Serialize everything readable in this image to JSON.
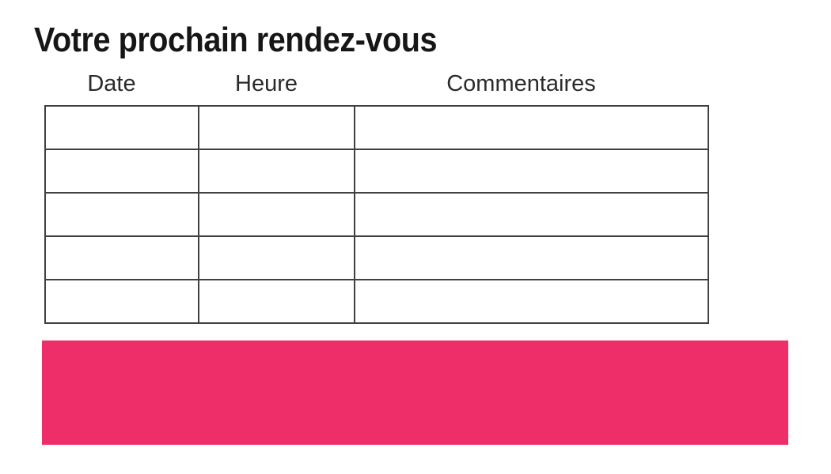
{
  "title": "Votre prochain rendez-vous",
  "table": {
    "headers": [
      "Date",
      "Heure",
      "Commentaires"
    ],
    "rows": [
      [
        "",
        "",
        ""
      ],
      [
        "",
        "",
        ""
      ],
      [
        "",
        "",
        ""
      ],
      [
        "",
        "",
        ""
      ],
      [
        "",
        "",
        ""
      ]
    ]
  },
  "banner": {
    "text": ""
  },
  "colors": {
    "accent_pink": "#ED2E68",
    "table_border": "#404040",
    "title_text": "#161616",
    "header_text": "#2b2b2b"
  }
}
